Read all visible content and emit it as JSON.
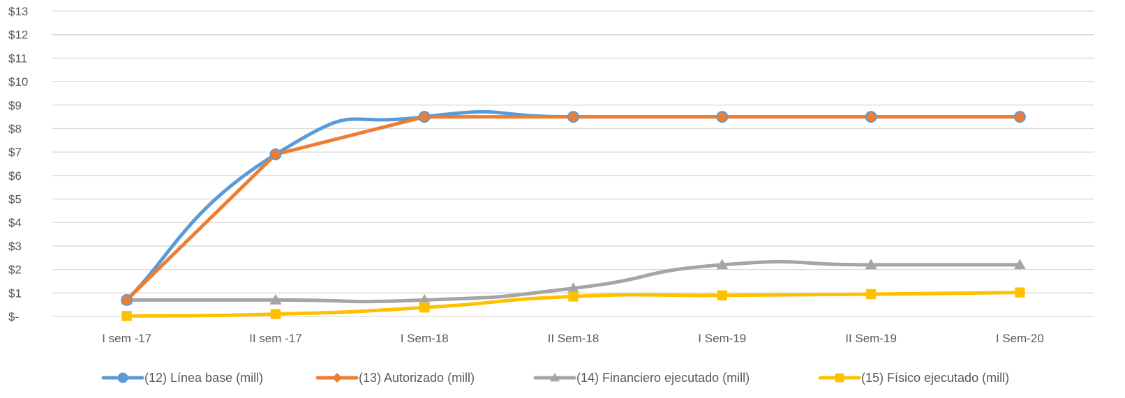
{
  "chart_data": {
    "type": "line",
    "categories": [
      "I sem -17",
      "II sem -17",
      "I Sem-18",
      "II Sem-18",
      "I Sem-19",
      "II Sem-19",
      "I Sem-20"
    ],
    "y_ticks": [
      "$-",
      "$1",
      "$2",
      "$3",
      "$4",
      "$5",
      "$6",
      "$7",
      "$8",
      "$9",
      "$10",
      "$11",
      "$12",
      "$13"
    ],
    "ylim": [
      0,
      13
    ],
    "grid": true,
    "legend_position": "bottom",
    "series": [
      {
        "name": "(12) Línea base (mill)",
        "values": [
          0.7,
          6.9,
          8.5,
          8.5,
          8.5,
          8.5,
          8.5
        ],
        "color": "#5b9bd5",
        "marker": "circle",
        "smooth": true
      },
      {
        "name": "(13) Autorizado (mill)",
        "values": [
          0.7,
          6.9,
          8.5,
          8.5,
          8.5,
          8.5,
          8.5
        ],
        "color": "#ed7d31",
        "marker": "diamond",
        "smooth": false
      },
      {
        "name": "(14) Financiero ejecutado (mill)",
        "values": [
          0.7,
          0.7,
          0.7,
          1.2,
          2.2,
          2.2,
          2.2
        ],
        "color": "#a5a5a5",
        "marker": "triangle",
        "smooth": true
      },
      {
        "name": "(15) Físico ejecutado (mill)",
        "values": [
          0.02,
          0.1,
          0.38,
          0.85,
          0.9,
          0.95,
          1.02
        ],
        "color": "#ffc000",
        "marker": "square",
        "smooth": true
      }
    ]
  }
}
